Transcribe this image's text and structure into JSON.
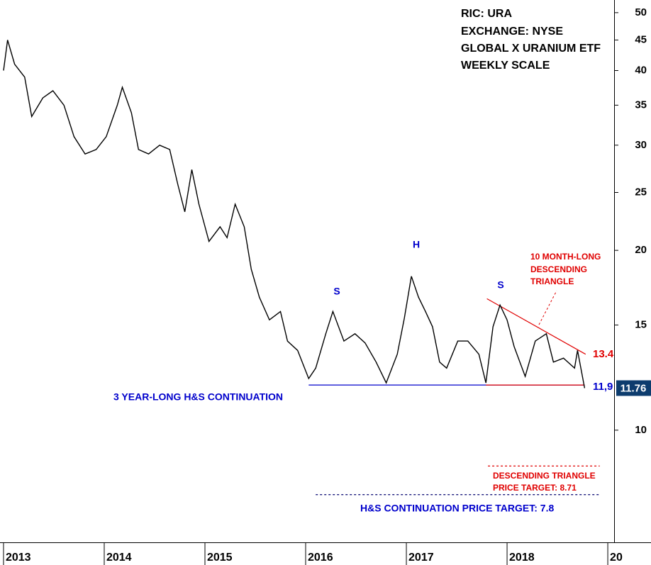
{
  "chart_data": {
    "type": "line",
    "log_scale": true,
    "xlim": [
      2012.965,
      2019.063
    ],
    "xticks": [
      2013,
      2014,
      2015,
      2016,
      2017,
      2018,
      {
        "value": 2019,
        "label": "20"
      }
    ],
    "ylim": [
      6.49,
      52.5
    ],
    "yticks": [
      10,
      15,
      20,
      25,
      30,
      35,
      40,
      45,
      50
    ],
    "series": [
      {
        "color": "#000000",
        "x": [
          2013.0,
          2013.04,
          2013.11,
          2013.21,
          2013.28,
          2013.39,
          2013.49,
          2013.6,
          2013.7,
          2013.81,
          2013.92,
          2014.02,
          2014.13,
          2014.18,
          2014.27,
          2014.34,
          2014.44,
          2014.55,
          2014.65,
          2014.73,
          2014.8,
          2014.87,
          2014.94,
          2015.04,
          2015.15,
          2015.22,
          2015.3,
          2015.39,
          2015.46,
          2015.54,
          2015.64,
          2015.75,
          2015.82,
          2015.92,
          2016.03,
          2016.1,
          2016.2,
          2016.27,
          2016.38,
          2016.49,
          2016.59,
          2016.7,
          2016.8,
          2016.91,
          2016.98,
          2017.05,
          2017.12,
          2017.19,
          2017.26,
          2017.33,
          2017.4,
          2017.51,
          2017.61,
          2017.72,
          2017.79,
          2017.86,
          2017.93,
          2018.0,
          2018.07,
          2018.18,
          2018.28,
          2018.39,
          2018.46,
          2018.56,
          2018.67,
          2018.7,
          2018.77
        ],
        "values": [
          40,
          45,
          41,
          39,
          33.5,
          36,
          37,
          35,
          31,
          29,
          29.5,
          31,
          35,
          37.5,
          34,
          29.5,
          29,
          30,
          29.5,
          25.8,
          23.2,
          27.3,
          23.9,
          20.7,
          21.9,
          21,
          23.9,
          21.9,
          18.6,
          16.7,
          15.3,
          15.8,
          14.1,
          13.6,
          12.2,
          12.7,
          14.5,
          15.8,
          14.1,
          14.5,
          14.0,
          13.0,
          12.0,
          13.4,
          15.4,
          18.1,
          16.7,
          15.8,
          14.9,
          13.0,
          12.7,
          14.1,
          14.1,
          13.4,
          12.0,
          14.9,
          16.2,
          15.3,
          13.8,
          12.3,
          14.1,
          14.5,
          13.0,
          13.2,
          12.7,
          13.6,
          11.76
        ]
      }
    ],
    "lines": [
      {
        "x": [
          2016.03,
          2018.77
        ],
        "y": [
          11.9,
          11.9
        ],
        "color": "#0000cc",
        "dash": false
      },
      {
        "x": [
          2017.79,
          2018.77
        ],
        "y": [
          11.9,
          11.9
        ],
        "color": "#e00000",
        "dash": false
      },
      {
        "x": [
          2017.8,
          2018.78
        ],
        "y": [
          16.6,
          13.4
        ],
        "color": "#e00000",
        "dash": false
      },
      {
        "x": [
          2017.81,
          2018.92
        ],
        "y": [
          8.71,
          8.71
        ],
        "color": "#e00000",
        "dash": true
      },
      {
        "x": [
          2016.1,
          2018.92
        ],
        "y": [
          7.8,
          7.8
        ],
        "color": "#00006e",
        "dash": true
      }
    ],
    "annotations": [
      {
        "text": "RIC: URA",
        "color": "#000000"
      },
      {
        "text": "EXCHANGE: NYSE",
        "color": "#000000"
      },
      {
        "text": "GLOBAL X URANIUM ETF",
        "color": "#000000"
      },
      {
        "text": "WEEKLY SCALE",
        "color": "#000000"
      },
      {
        "text": "S",
        "color": "#0000cc"
      },
      {
        "text": "H",
        "color": "#0000cc"
      },
      {
        "text": "S",
        "color": "#0000cc"
      },
      {
        "text": "10 MONTH-LONG",
        "color": "#e00000"
      },
      {
        "text": "DESCENDING",
        "color": "#e00000"
      },
      {
        "text": "TRIANGLE",
        "color": "#e00000"
      },
      {
        "text": "13.4",
        "color": "#e00000"
      },
      {
        "text": "11,9",
        "color": "#0000cc"
      },
      {
        "text": "3 YEAR-LONG H&S CONTINUATION",
        "color": "#0000cc"
      },
      {
        "text": "DESCENDING TRIANGLE",
        "color": "#e00000"
      },
      {
        "text": "PRICE TARGET: 8.71",
        "color": "#e00000"
      },
      {
        "text": "H&S CONTINUATION PRICE TARGET: 7.8",
        "color": "#0000cc"
      }
    ],
    "last_price_box_color": "#0d3c6e"
  }
}
